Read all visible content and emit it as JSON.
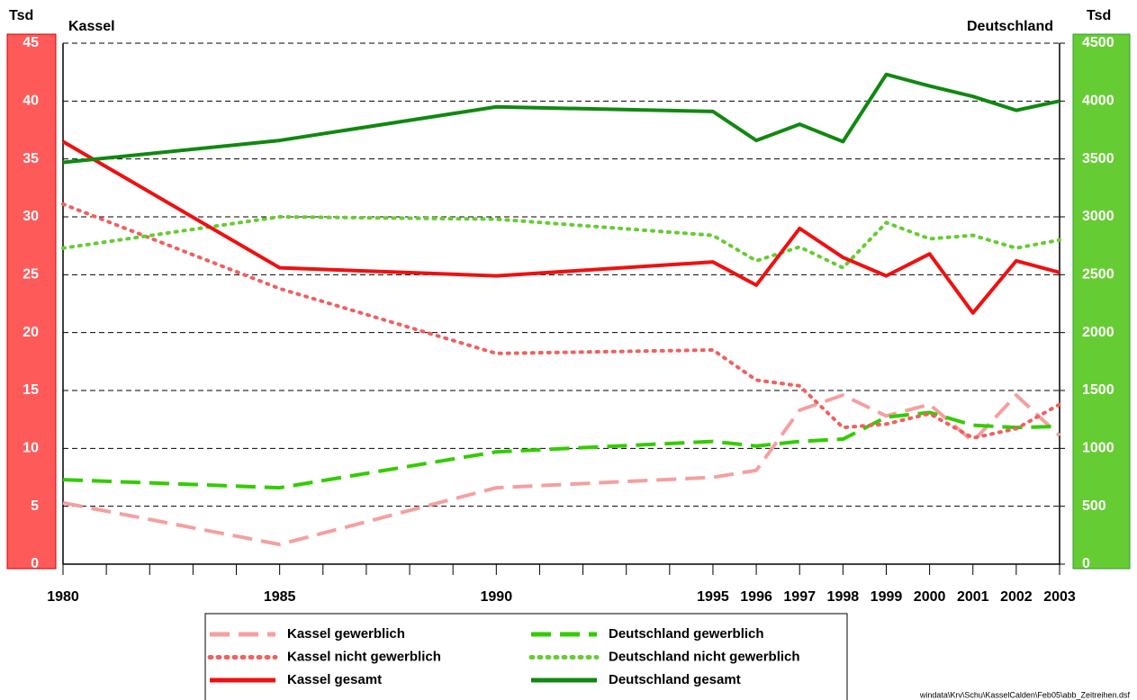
{
  "chart_data": {
    "type": "line",
    "left_unit": "Tsd",
    "right_unit": "Tsd",
    "left_title": "Kassel",
    "right_title": "Deutschland",
    "source": "windata\\Krv\\Schu\\KasselCalden\\Feb05\\abb_Zeitreihen.dsf",
    "x": [
      1980,
      1985,
      1990,
      1995,
      1996,
      1997,
      1998,
      1999,
      2000,
      2001,
      2002,
      2003
    ],
    "xlim": [
      1980,
      2003
    ],
    "xticks": [
      1980,
      1985,
      1990,
      1995,
      1996,
      1997,
      1998,
      1999,
      2000,
      2001,
      2002,
      2003
    ],
    "xminorticks": [
      1980,
      1981,
      1982,
      1983,
      1984,
      1985,
      1986,
      1987,
      1988,
      1989,
      1990,
      1991,
      1992,
      1993,
      1994,
      1995,
      1996,
      1997,
      1998,
      1999,
      2000,
      2001,
      2002,
      2003
    ],
    "ylim": [
      0,
      45
    ],
    "yticks": [
      0,
      5,
      10,
      15,
      20,
      25,
      30,
      35,
      40,
      45
    ],
    "y2lim": [
      0,
      4500
    ],
    "y2ticks": [
      0,
      500,
      1000,
      1500,
      2000,
      2500,
      3000,
      3500,
      4000,
      4500
    ],
    "grid": true,
    "left_axis_color": "#ff5a5a",
    "right_axis_color": "#66cc33",
    "series": [
      {
        "name": "Kassel gewerblich",
        "color": "#f4a0a0",
        "style": "dashed",
        "values": [
          5.3,
          1.7,
          6.6,
          7.5,
          8.1,
          13.3,
          14.6,
          12.8,
          13.8,
          10.6,
          14.6,
          11.1
        ]
      },
      {
        "name": "Deutschland gewerblich",
        "color": "#33cc00",
        "style": "dashed",
        "axis": "y2",
        "values": [
          730,
          660,
          970,
          1060,
          1020,
          1060,
          1080,
          1270,
          1310,
          1200,
          1180,
          1190
        ]
      },
      {
        "name": "Kassel nicht gewerblich",
        "color": "#f06060",
        "style": "dotted",
        "values": [
          31.1,
          23.8,
          18.2,
          18.5,
          15.9,
          15.4,
          11.8,
          12.1,
          13.0,
          10.9,
          11.7,
          13.8
        ]
      },
      {
        "name": "Deutschland nicht gewerblich",
        "color": "#66cc33",
        "style": "dotted",
        "axis": "y2",
        "values": [
          2730,
          3000,
          2980,
          2840,
          2620,
          2740,
          2560,
          2950,
          2810,
          2840,
          2730,
          2800
        ]
      },
      {
        "name": "Kassel gesamt",
        "color": "#ee1111",
        "style": "solid",
        "values": [
          36.5,
          25.6,
          24.9,
          26.1,
          24.1,
          29.0,
          26.5,
          24.9,
          26.8,
          21.7,
          26.2,
          25.2
        ]
      },
      {
        "name": "Deutschland gesamt",
        "color": "#118811",
        "style": "solid",
        "axis": "y2",
        "values": [
          3470,
          3660,
          3950,
          3910,
          3660,
          3800,
          3650,
          4230,
          4130,
          4040,
          3920,
          4000
        ]
      }
    ]
  }
}
